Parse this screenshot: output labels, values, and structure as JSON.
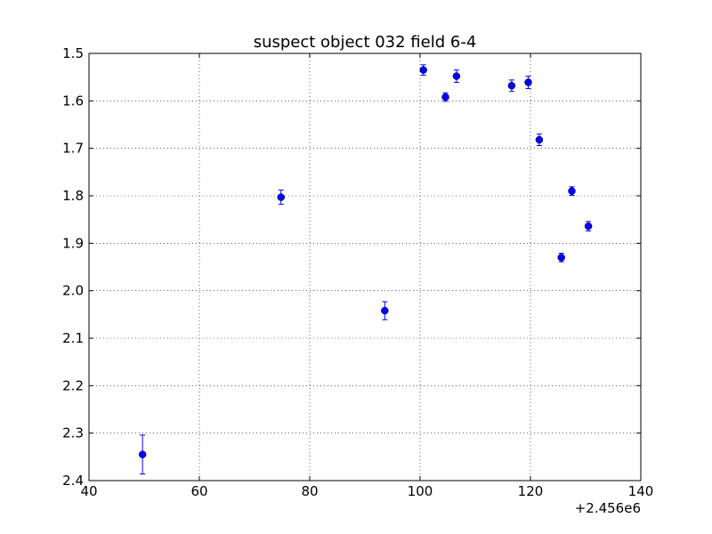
{
  "chart_data": {
    "type": "scatter",
    "title": "suspect object 032 field 6-4",
    "xlabel": "",
    "ylabel": "",
    "x_offset_label": "+2.456e6",
    "xlim": [
      40,
      140
    ],
    "ylim": [
      1.5,
      2.4
    ],
    "y_inverted": true,
    "grid": true,
    "x_ticks": [
      "40",
      "60",
      "80",
      "100",
      "120",
      "140"
    ],
    "y_ticks": [
      "1.5",
      "1.6",
      "1.7",
      "1.8",
      "1.9",
      "2.0",
      "2.1",
      "2.2",
      "2.3",
      "2.4"
    ],
    "marker_color": "#0000ff",
    "errorbar_color": "#0000ff",
    "points": [
      {
        "x": 49.7,
        "y": 2.345,
        "yerr": 0.041
      },
      {
        "x": 74.8,
        "y": 1.803,
        "yerr": 0.015
      },
      {
        "x": 93.6,
        "y": 2.042,
        "yerr": 0.019
      },
      {
        "x": 100.6,
        "y": 1.535,
        "yerr": 0.011
      },
      {
        "x": 104.6,
        "y": 1.592,
        "yerr": 0.009
      },
      {
        "x": 106.6,
        "y": 1.548,
        "yerr": 0.013
      },
      {
        "x": 116.6,
        "y": 1.568,
        "yerr": 0.012
      },
      {
        "x": 119.6,
        "y": 1.561,
        "yerr": 0.013
      },
      {
        "x": 121.6,
        "y": 1.682,
        "yerr": 0.012
      },
      {
        "x": 125.6,
        "y": 1.93,
        "yerr": 0.009
      },
      {
        "x": 127.5,
        "y": 1.79,
        "yerr": 0.009
      },
      {
        "x": 130.5,
        "y": 1.864,
        "yerr": 0.01
      }
    ]
  }
}
